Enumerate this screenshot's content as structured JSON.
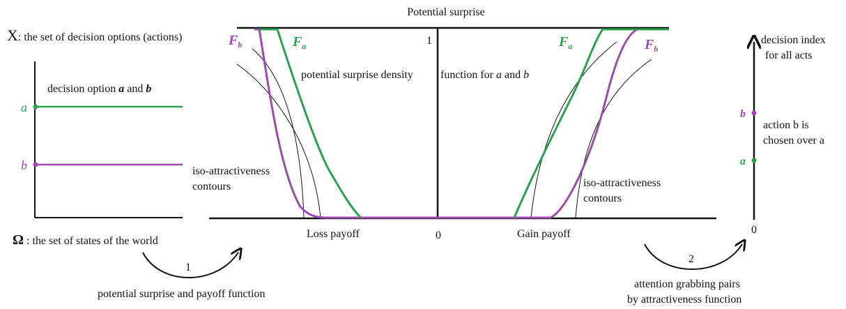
{
  "title": "Potential surprise",
  "left_panel": {
    "axis_label_symbol": "X",
    "axis_label": ": the set of decision options (actions)",
    "heading": [
      "decision option ",
      "a",
      " and ",
      "b"
    ],
    "option_a": "a",
    "option_b": "b",
    "states_symbol": "Ω",
    "states_label": " : the set of states of the world"
  },
  "center_panel": {
    "top_value": "1",
    "zero": "0",
    "loss": "Loss payoff",
    "gain": "Gain payoff",
    "density_label": [
      "potential surprise density ",
      "function for ",
      "a",
      " and ",
      "b"
    ],
    "curve_labels": [
      {
        "symbol": "F",
        "sub": "b"
      },
      {
        "symbol": "F",
        "sub": "a"
      },
      {
        "symbol": "F",
        "sub": "a"
      },
      {
        "symbol": "F",
        "sub": "b"
      }
    ],
    "contours_left": [
      "iso-attractiveness",
      "contours"
    ],
    "contours_right": [
      "iso-attractiveness",
      "contours"
    ]
  },
  "arrows": [
    {
      "number": "1",
      "caption": [
        "potential surprise and payoff function"
      ]
    },
    {
      "number": "2",
      "caption": [
        "attention grabbing pairs",
        "by attractiveness function"
      ]
    }
  ],
  "right_panel": {
    "axis_label": [
      "decision index",
      "for all acts"
    ],
    "option_b": "b",
    "option_a": "a",
    "note": [
      "action b is",
      "chosen over a"
    ],
    "zero": "0"
  }
}
